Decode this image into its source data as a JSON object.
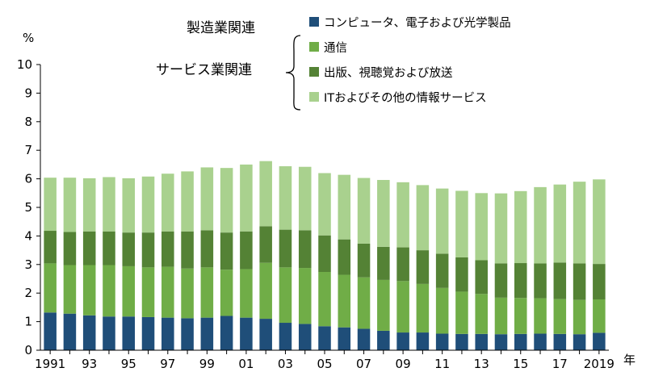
{
  "chart_data": {
    "type": "bar",
    "stacked": true,
    "y_unit_label": "%",
    "x_unit_label": "年",
    "ylim": [
      0,
      10
    ],
    "yticks": [
      0,
      1,
      2,
      3,
      4,
      5,
      6,
      7,
      8,
      9,
      10
    ],
    "grid": false,
    "legend_position": "top-right",
    "categories": [
      "1991",
      "1992",
      "1993",
      "1994",
      "1995",
      "1996",
      "1997",
      "1998",
      "1999",
      "2000",
      "2001",
      "2002",
      "2003",
      "2004",
      "2005",
      "2006",
      "2007",
      "2008",
      "2009",
      "2010",
      "2011",
      "2012",
      "2013",
      "2014",
      "2015",
      "2016",
      "2017",
      "2018",
      "2019"
    ],
    "x_tick_labels": [
      "1991",
      "",
      "93",
      "",
      "95",
      "",
      "97",
      "",
      "99",
      "",
      "01",
      "",
      "03",
      "",
      "05",
      "",
      "07",
      "",
      "09",
      "",
      "11",
      "",
      "13",
      "",
      "15",
      "",
      "17",
      "",
      "2019"
    ],
    "legend_groups": [
      {
        "label": "製造業関連"
      },
      {
        "label": "サービス業関連"
      }
    ],
    "series": [
      {
        "name": "コンピュータ、電子および光学製品",
        "color": "#1f4e79",
        "values": [
          1.32,
          1.28,
          1.22,
          1.18,
          1.18,
          1.16,
          1.14,
          1.12,
          1.14,
          1.2,
          1.14,
          1.1,
          0.96,
          0.92,
          0.84,
          0.8,
          0.75,
          0.68,
          0.62,
          0.62,
          0.58,
          0.57,
          0.57,
          0.56,
          0.57,
          0.58,
          0.57,
          0.56,
          0.61
        ]
      },
      {
        "name": "通信",
        "color": "#70ad47",
        "values": [
          1.72,
          1.7,
          1.76,
          1.8,
          1.76,
          1.74,
          1.78,
          1.74,
          1.76,
          1.62,
          1.7,
          1.96,
          1.94,
          1.96,
          1.9,
          1.84,
          1.8,
          1.78,
          1.8,
          1.7,
          1.6,
          1.48,
          1.4,
          1.28,
          1.26,
          1.24,
          1.22,
          1.2,
          1.17
        ]
      },
      {
        "name": "出版、視聴覚および放送",
        "color": "#548235",
        "values": [
          1.14,
          1.16,
          1.18,
          1.18,
          1.18,
          1.22,
          1.24,
          1.3,
          1.3,
          1.3,
          1.32,
          1.28,
          1.32,
          1.32,
          1.28,
          1.24,
          1.18,
          1.16,
          1.18,
          1.18,
          1.2,
          1.2,
          1.18,
          1.2,
          1.22,
          1.22,
          1.28,
          1.28,
          1.24
        ]
      },
      {
        "name": "ITおよびその他の情報サービス",
        "color": "#a9d18e",
        "values": [
          1.86,
          1.9,
          1.86,
          1.9,
          1.9,
          1.96,
          2.02,
          2.1,
          2.2,
          2.26,
          2.34,
          2.28,
          2.22,
          2.22,
          2.18,
          2.26,
          2.3,
          2.34,
          2.28,
          2.28,
          2.28,
          2.33,
          2.35,
          2.45,
          2.52,
          2.67,
          2.73,
          2.86,
          2.96
        ]
      }
    ]
  }
}
